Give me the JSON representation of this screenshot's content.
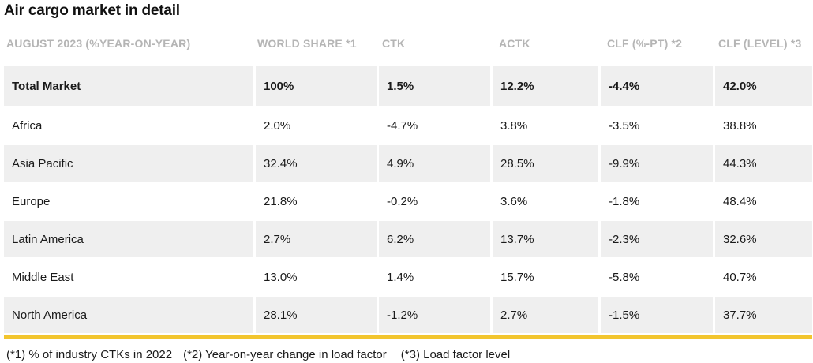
{
  "title": "Air cargo market in detail",
  "columns": [
    "AUGUST 2023 (%YEAR-ON-YEAR)",
    "WORLD SHARE *1",
    "CTK",
    "ACTK",
    "CLF (%-PT) *2",
    "CLF (LEVEL) *3"
  ],
  "rows": [
    [
      "Total Market",
      "100%",
      "1.5%",
      "12.2%",
      "-4.4%",
      "42.0%"
    ],
    [
      "Africa",
      "2.0%",
      "-4.7%",
      "3.8%",
      "-3.5%",
      "38.8%"
    ],
    [
      "Asia Pacific",
      "32.4%",
      "4.9%",
      "28.5%",
      "-9.9%",
      "44.3%"
    ],
    [
      "Europe",
      "21.8%",
      "-0.2%",
      "3.6%",
      "-1.8%",
      "48.4%"
    ],
    [
      "Latin America",
      "2.7%",
      "6.2%",
      "13.7%",
      "-2.3%",
      "32.6%"
    ],
    [
      "Middle East",
      "13.0%",
      "1.4%",
      "15.7%",
      "-5.8%",
      "40.7%"
    ],
    [
      "North America",
      "28.1%",
      "-1.2%",
      "2.7%",
      "-1.5%",
      "37.7%"
    ]
  ],
  "footnotes": [
    "(*1) % of industry CTKs in 2022",
    "(*2) Year-on-year change in load factor",
    "(*3) Load factor level"
  ],
  "colors": {
    "accent_rule": "#f2c52e",
    "row_shade": "#efefef",
    "header_text": "#b5b5b5"
  }
}
